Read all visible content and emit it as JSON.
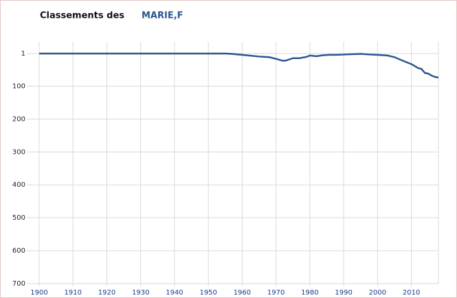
{
  "chart_data": {
    "type": "line",
    "title": "Classements des",
    "name": "MARIE,F",
    "x": [
      1900,
      1910,
      1920,
      1930,
      1940,
      1950,
      1955,
      1957,
      1960,
      1962,
      1965,
      1968,
      1970,
      1972,
      1973,
      1975,
      1977,
      1979,
      1980,
      1982,
      1984,
      1986,
      1988,
      1990,
      1992,
      1995,
      1998,
      2000,
      2003,
      2005,
      2008,
      2010,
      2012,
      2013,
      2014,
      2015,
      2016,
      2017,
      2018
    ],
    "series": [
      {
        "name": "MARIE,F",
        "color": "#2b5590",
        "values": [
          1,
          1,
          1,
          1,
          1,
          1,
          1,
          2,
          5,
          7,
          10,
          12,
          17,
          23,
          22,
          15,
          15,
          11,
          7,
          9,
          6,
          5,
          5,
          4,
          3,
          2,
          4,
          5,
          7,
          12,
          25,
          33,
          45,
          48,
          60,
          62,
          68,
          72,
          74
        ]
      }
    ],
    "xlim": [
      1900,
      2018
    ],
    "xticks": [
      1900,
      1910,
      1920,
      1930,
      1940,
      1950,
      1960,
      1970,
      1980,
      1990,
      2000,
      2010
    ],
    "ylim": [
      1,
      700
    ],
    "yticks": [
      1,
      100,
      200,
      300,
      400,
      500,
      600,
      700
    ],
    "y_inverted": true,
    "grid": true
  }
}
